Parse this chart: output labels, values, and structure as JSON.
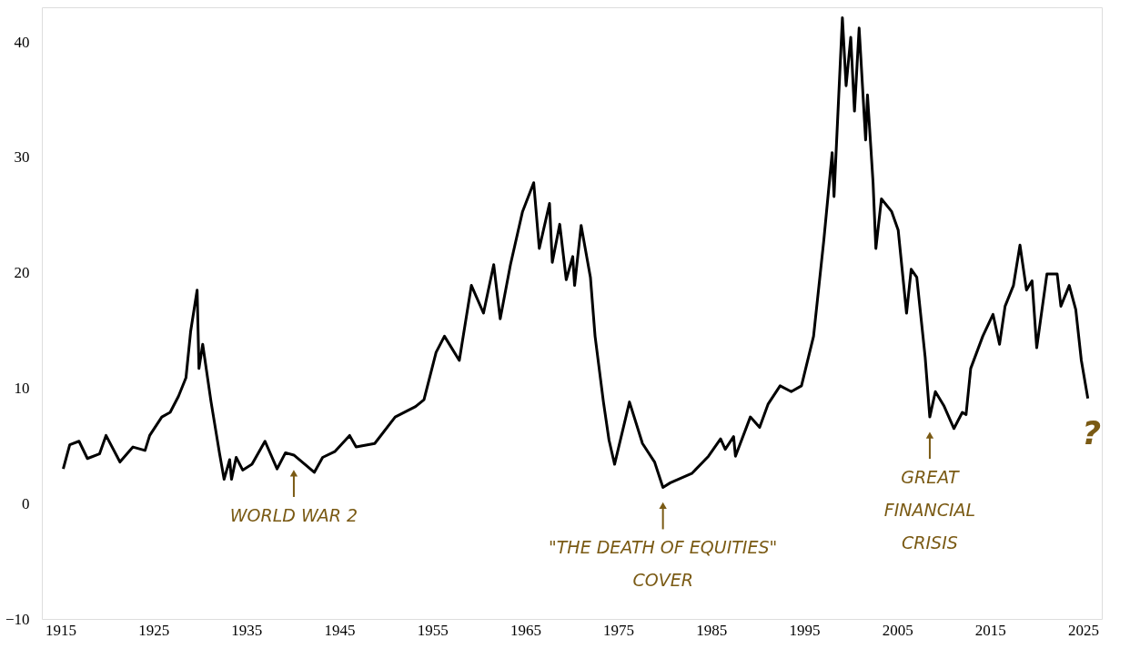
{
  "chart_data": {
    "type": "line",
    "x": [
      1915.3,
      1916.0,
      1917.0,
      1917.9,
      1919.2,
      1919.9,
      1921.4,
      1922.8,
      1924.1,
      1924.6,
      1925.9,
      1926.8,
      1927.7,
      1928.5,
      1929.0,
      1929.7,
      1929.9,
      1930.3,
      1931.2,
      1932.1,
      1932.6,
      1933.2,
      1933.4,
      1933.9,
      1934.6,
      1935.6,
      1937.0,
      1938.3,
      1939.2,
      1940.1,
      1941.0,
      1942.3,
      1943.2,
      1944.5,
      1946.1,
      1946.8,
      1948.8,
      1951.0,
      1953.2,
      1954.1,
      1955.4,
      1956.3,
      1957.9,
      1959.2,
      1960.5,
      1961.6,
      1962.3,
      1963.4,
      1964.7,
      1965.9,
      1966.5,
      1967.6,
      1967.9,
      1968.7,
      1969.4,
      1970.1,
      1970.3,
      1971.0,
      1972.0,
      1972.5,
      1973.4,
      1974.0,
      1974.6,
      1976.2,
      1977.6,
      1978.9,
      1979.8,
      1980.6,
      1982.9,
      1984.7,
      1986.0,
      1986.5,
      1987.4,
      1987.6,
      1989.2,
      1990.2,
      1991.1,
      1992.4,
      1993.6,
      1994.7,
      1996.0,
      1997.1,
      1998.0,
      1998.2,
      1999.1,
      1999.5,
      2000.0,
      2000.4,
      2000.9,
      2001.6,
      2001.8,
      2002.4,
      2002.7,
      2003.3,
      2004.4,
      2005.1,
      2006.0,
      2006.5,
      2007.1,
      2008.0,
      2008.5,
      2009.1,
      2010.0,
      2011.1,
      2012.0,
      2012.4,
      2012.9,
      2014.2,
      2015.3,
      2016.0,
      2016.6,
      2017.5,
      2018.2,
      2018.9,
      2019.5,
      2020.0,
      2021.1,
      2022.2,
      2022.6,
      2023.5,
      2024.2,
      2024.8,
      2025.5
    ],
    "series": [
      {
        "color": "#000000",
        "values": [
          3.0,
          5.1,
          5.4,
          3.9,
          4.3,
          5.9,
          3.6,
          4.9,
          4.6,
          5.9,
          7.5,
          7.9,
          9.3,
          10.9,
          14.9,
          18.5,
          11.7,
          13.8,
          8.8,
          4.4,
          2.1,
          3.8,
          2.1,
          4.0,
          2.9,
          3.4,
          5.4,
          3.0,
          4.4,
          4.2,
          3.6,
          2.7,
          4.0,
          4.5,
          5.9,
          4.9,
          5.2,
          7.5,
          8.4,
          9.0,
          13.1,
          14.5,
          12.4,
          18.9,
          16.5,
          20.7,
          16.0,
          20.7,
          25.3,
          27.8,
          22.1,
          26.0,
          20.9,
          24.2,
          19.4,
          21.4,
          18.9,
          24.1,
          19.6,
          14.5,
          8.8,
          5.5,
          3.4,
          8.8,
          5.2,
          3.6,
          1.4,
          1.8,
          2.6,
          4.1,
          5.6,
          4.7,
          5.8,
          4.1,
          7.5,
          6.6,
          8.6,
          10.2,
          9.7,
          10.2,
          14.5,
          22.8,
          30.4,
          26.6,
          42.1,
          36.2,
          40.4,
          34.0,
          41.2,
          31.5,
          35.4,
          27.8,
          22.1,
          26.4,
          25.3,
          23.7,
          16.5,
          20.3,
          19.6,
          12.7,
          7.5,
          9.7,
          8.5,
          6.5,
          7.9,
          7.7,
          11.7,
          14.5,
          16.4,
          13.8,
          17.1,
          18.9,
          22.4,
          18.5,
          19.3,
          13.5,
          19.9,
          19.9,
          17.1,
          18.9,
          16.8,
          12.4,
          9.1
        ]
      }
    ],
    "xlim": [
      1913,
      2027
    ],
    "ylim": [
      -10,
      43
    ],
    "xticks": [
      1915,
      1925,
      1935,
      1945,
      1955,
      1965,
      1975,
      1985,
      1995,
      2005,
      2015,
      2025
    ],
    "yticks": [
      -10,
      0,
      10,
      20,
      30,
      40
    ],
    "grid": false,
    "annotations": [
      {
        "text": "WORLD WAR 2",
        "x": 1940.1,
        "y": 4.2
      },
      {
        "text": "\"THE DEATH OF EQUITIES\"\nCOVER",
        "x": 1979.8,
        "y": 1.4
      },
      {
        "text": "GREAT\nFINANCIAL\nCRISIS",
        "x": 2008.5,
        "y": 7.5
      },
      "?"
    ]
  }
}
